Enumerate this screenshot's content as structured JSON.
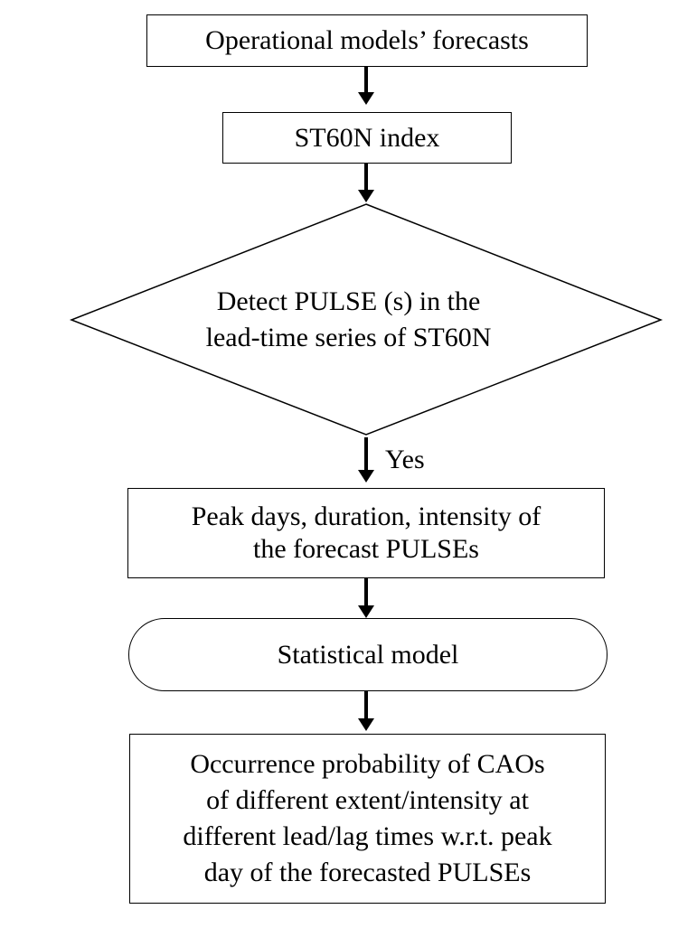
{
  "diagram": {
    "step1": {
      "text": "Operational models’ forecasts"
    },
    "step2": {
      "text": "ST60N index"
    },
    "decision": {
      "lines": [
        "Detect PULSE (s) in the",
        "lead-time series of ST60N"
      ]
    },
    "yes_label": "Yes",
    "step3": {
      "lines": [
        "Peak days, duration, intensity of",
        "the forecast PULSEs"
      ]
    },
    "step4": {
      "text": "Statistical model"
    },
    "step5": {
      "lines": [
        "Occurrence probability of CAOs",
        "of different extent/intensity at",
        "different lead/lag times w.r.t. peak",
        "day of the forecasted PULSEs"
      ]
    }
  }
}
